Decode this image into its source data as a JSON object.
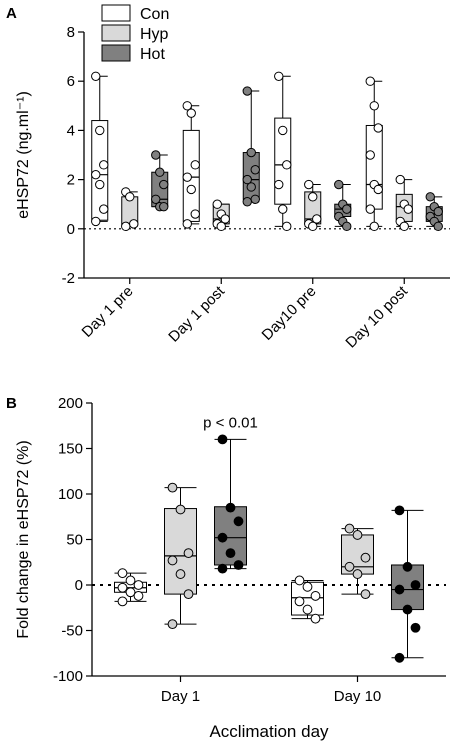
{
  "panel_labels": [
    "A",
    "B"
  ],
  "legend": [
    {
      "label": "Con",
      "fill": "#ffffff"
    },
    {
      "label": "Hyp",
      "fill": "#d9d9d9"
    },
    {
      "label": "Hot",
      "fill": "#808080"
    }
  ],
  "colors": {
    "Con": "#ffffff",
    "Hyp": "#d9d9d9",
    "Hot": "#808080",
    "Hot_points_B": "#000000",
    "Hyp_points_B": "#d0d0d0"
  },
  "chart_data": [
    {
      "type": "box",
      "panel": "A",
      "ylabel": "eHSP72 (ng.ml⁻¹)",
      "ylim": [
        -2,
        8
      ],
      "yticks": [
        -2,
        0,
        2,
        4,
        6,
        8
      ],
      "reference_line": 0,
      "categories": [
        "Day 1 pre",
        "Day 1 post",
        "Day10 pre",
        "Day 10 post"
      ],
      "series": [
        {
          "name": "Con",
          "boxes": [
            {
              "min": 0.3,
              "q1": 0.35,
              "median": 2.2,
              "q3": 4.4,
              "max": 6.2,
              "points": [
                6.2,
                4.0,
                2.6,
                2.2,
                1.8,
                0.8,
                0.3
              ]
            },
            {
              "min": 0.2,
              "q1": 0.3,
              "median": 2.1,
              "q3": 4.0,
              "max": 5.0,
              "points": [
                5.0,
                4.7,
                2.6,
                2.1,
                1.6,
                0.6,
                0.2
              ]
            },
            {
              "min": 0.1,
              "q1": 1.0,
              "median": 2.6,
              "q3": 4.5,
              "max": 6.2,
              "points": [
                6.2,
                4.0,
                2.6,
                1.8,
                0.8,
                0.1
              ]
            },
            {
              "min": 0.1,
              "q1": 0.8,
              "median": 1.8,
              "q3": 4.2,
              "max": 6.0,
              "points": [
                6.0,
                5.0,
                4.1,
                3.0,
                1.8,
                1.6,
                0.8,
                0.1
              ]
            }
          ]
        },
        {
          "name": "Hyp",
          "boxes": [
            {
              "min": 0.1,
              "q1": 0.15,
              "median": 0.2,
              "q3": 1.3,
              "max": 1.5,
              "points": [
                1.5,
                1.3,
                0.2,
                0.1
              ]
            },
            {
              "min": 0.1,
              "q1": 0.2,
              "median": 0.4,
              "q3": 1.0,
              "max": 1.0,
              "points": [
                1.0,
                0.6,
                0.4,
                0.2,
                0.1
              ]
            },
            {
              "min": 0.1,
              "q1": 0.2,
              "median": 0.4,
              "q3": 1.5,
              "max": 1.8,
              "points": [
                1.8,
                1.3,
                0.4,
                0.2,
                0.1
              ]
            },
            {
              "min": 0.1,
              "q1": 0.3,
              "median": 0.9,
              "q3": 1.4,
              "max": 2.0,
              "points": [
                2.0,
                1.0,
                0.8,
                0.3,
                0.1
              ]
            }
          ]
        },
        {
          "name": "Hot",
          "boxes": [
            {
              "min": 0.9,
              "q1": 0.9,
              "median": 1.2,
              "q3": 2.3,
              "max": 3.0,
              "points": [
                3.0,
                2.3,
                1.8,
                1.2,
                0.9,
                0.9
              ]
            },
            {
              "min": 1.1,
              "q1": 1.2,
              "median": 2.0,
              "q3": 3.1,
              "max": 5.6,
              "points": [
                5.6,
                3.1,
                2.4,
                2.0,
                1.7,
                1.2,
                1.1
              ]
            },
            {
              "min": 0.1,
              "q1": 0.5,
              "median": 0.8,
              "q3": 1.0,
              "max": 1.8,
              "points": [
                1.8,
                1.0,
                0.8,
                0.5,
                0.3,
                0.1
              ]
            },
            {
              "min": 0.1,
              "q1": 0.3,
              "median": 0.6,
              "q3": 0.9,
              "max": 1.3,
              "points": [
                1.3,
                0.9,
                0.7,
                0.5,
                0.3,
                0.1
              ]
            }
          ]
        }
      ]
    },
    {
      "type": "box",
      "panel": "B",
      "ylabel": "Fold change in eHSP72 (%)",
      "xlabel": "Acclimation day",
      "ylim": [
        -100,
        200
      ],
      "yticks": [
        -100,
        -50,
        0,
        50,
        100,
        150,
        200
      ],
      "reference_line": 0,
      "categories": [
        "Day 1",
        "Day 10"
      ],
      "annotation": {
        "text": "p < 0.01",
        "category": "Day 1",
        "series": "Hot"
      },
      "series": [
        {
          "name": "Con",
          "boxes": [
            {
              "min": -18,
              "q1": -8,
              "median": -3,
              "q3": 3,
              "max": 13,
              "points": [
                13,
                5,
                0,
                -3,
                -8,
                -12,
                -18
              ]
            },
            {
              "min": -37,
              "q1": -33,
              "median": -14,
              "q3": 3,
              "max": 5,
              "points": [
                5,
                -2,
                -12,
                -18,
                -27,
                -37
              ]
            }
          ]
        },
        {
          "name": "Hyp",
          "boxes": [
            {
              "min": -43,
              "q1": -10,
              "median": 32,
              "q3": 84,
              "max": 107,
              "points": [
                107,
                83,
                35,
                27,
                12,
                -10,
                -43
              ]
            },
            {
              "min": -10,
              "q1": 12,
              "median": 20,
              "q3": 55,
              "max": 62,
              "points": [
                62,
                55,
                30,
                20,
                12,
                -10
              ]
            }
          ]
        },
        {
          "name": "Hot",
          "boxes": [
            {
              "min": 18,
              "q1": 22,
              "median": 52,
              "q3": 86,
              "max": 160,
              "points": [
                160,
                85,
                70,
                52,
                35,
                22,
                18
              ]
            },
            {
              "min": -80,
              "q1": -27,
              "median": -5,
              "q3": 22,
              "max": 82,
              "points": [
                82,
                20,
                0,
                -5,
                -27,
                -47,
                -80
              ]
            }
          ]
        }
      ]
    }
  ]
}
